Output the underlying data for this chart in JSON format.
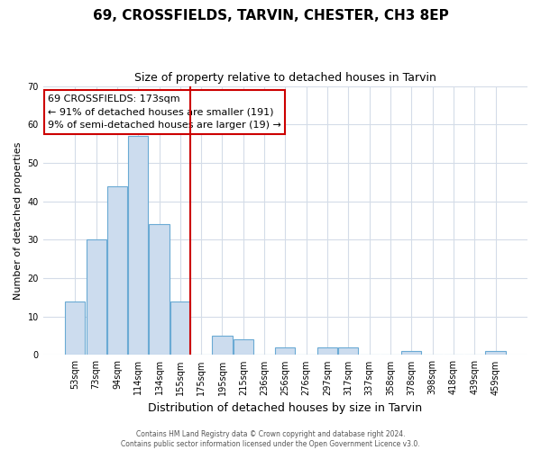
{
  "title": "69, CROSSFIELDS, TARVIN, CHESTER, CH3 8EP",
  "subtitle": "Size of property relative to detached houses in Tarvin",
  "xlabel": "Distribution of detached houses by size in Tarvin",
  "ylabel": "Number of detached properties",
  "bin_labels": [
    "53sqm",
    "73sqm",
    "94sqm",
    "114sqm",
    "134sqm",
    "155sqm",
    "175sqm",
    "195sqm",
    "215sqm",
    "236sqm",
    "256sqm",
    "276sqm",
    "297sqm",
    "317sqm",
    "337sqm",
    "358sqm",
    "378sqm",
    "398sqm",
    "418sqm",
    "439sqm",
    "459sqm"
  ],
  "bar_heights": [
    14,
    30,
    44,
    57,
    34,
    14,
    0,
    5,
    4,
    0,
    2,
    0,
    2,
    2,
    0,
    0,
    1,
    0,
    0,
    0,
    1
  ],
  "bar_color": "#ccdcee",
  "bar_edge_color": "#6aaad4",
  "vline_x_index": 6,
  "vline_color": "#cc0000",
  "annotation_text": "69 CROSSFIELDS: 173sqm\n← 91% of detached houses are smaller (191)\n9% of semi-detached houses are larger (19) →",
  "annotation_box_facecolor": "#ffffff",
  "annotation_box_edgecolor": "#cc0000",
  "ylim": [
    0,
    70
  ],
  "yticks": [
    0,
    10,
    20,
    30,
    40,
    50,
    60,
    70
  ],
  "grid_color": "#d4dce8",
  "footer_text": "Contains HM Land Registry data © Crown copyright and database right 2024.\nContains public sector information licensed under the Open Government Licence v3.0.",
  "fig_facecolor": "#ffffff",
  "plot_facecolor": "#ffffff",
  "title_fontsize": 11,
  "subtitle_fontsize": 9,
  "ylabel_fontsize": 8,
  "xlabel_fontsize": 9,
  "tick_fontsize": 7,
  "footer_fontsize": 5.5,
  "ann_fontsize": 8
}
